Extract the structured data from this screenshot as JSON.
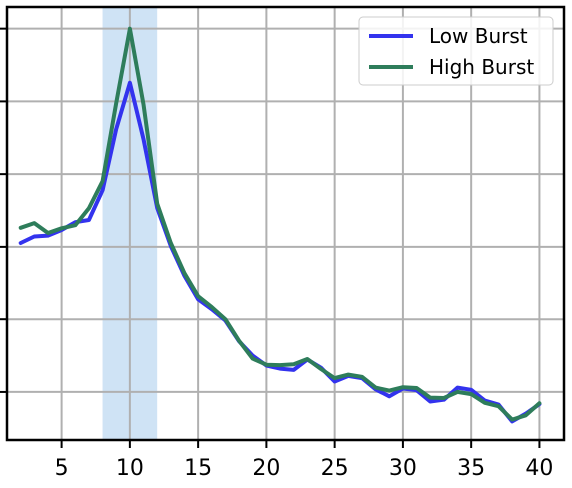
{
  "chart_data": {
    "type": "line",
    "title": "",
    "xlabel": "",
    "ylabel": "",
    "xlim": [
      1.0,
      41.8
    ],
    "ylim": [
      0.0,
      1.0
    ],
    "xticks": [
      5,
      10,
      15,
      20,
      25,
      30,
      35,
      40
    ],
    "y_ticklabels_shown": false,
    "y_gridlines": [
      0.111,
      0.279,
      0.446,
      0.614,
      0.782,
      0.95
    ],
    "grid": true,
    "highlight_band": {
      "x_start": 8,
      "x_end": 12,
      "color": "#cfe3f5"
    },
    "legend": {
      "placement": "top-right"
    },
    "x": [
      2,
      3,
      4,
      5,
      6,
      7,
      8,
      9,
      10,
      11,
      12,
      13,
      14,
      15,
      16,
      17,
      18,
      19,
      20,
      21,
      22,
      23,
      24,
      25,
      26,
      27,
      28,
      29,
      30,
      31,
      32,
      33,
      34,
      35,
      36,
      37,
      38,
      39,
      40
    ],
    "series": [
      {
        "name": "Low Burst",
        "color": "#3333ee",
        "values": [
          0.455,
          0.47,
          0.472,
          0.485,
          0.503,
          0.508,
          0.577,
          0.718,
          0.825,
          0.695,
          0.536,
          0.448,
          0.379,
          0.325,
          0.302,
          0.276,
          0.228,
          0.195,
          0.172,
          0.165,
          0.162,
          0.186,
          0.167,
          0.135,
          0.148,
          0.143,
          0.117,
          0.101,
          0.119,
          0.115,
          0.089,
          0.093,
          0.121,
          0.116,
          0.091,
          0.082,
          0.043,
          0.061,
          0.083
        ]
      },
      {
        "name": "High Burst",
        "color": "#2e7d5b",
        "values": [
          0.49,
          0.501,
          0.478,
          0.489,
          0.496,
          0.535,
          0.598,
          0.778,
          0.95,
          0.775,
          0.546,
          0.455,
          0.385,
          0.332,
          0.307,
          0.279,
          0.229,
          0.188,
          0.174,
          0.173,
          0.175,
          0.187,
          0.164,
          0.143,
          0.151,
          0.146,
          0.121,
          0.114,
          0.122,
          0.12,
          0.098,
          0.097,
          0.111,
          0.106,
          0.086,
          0.078,
          0.047,
          0.057,
          0.085
        ]
      }
    ]
  }
}
